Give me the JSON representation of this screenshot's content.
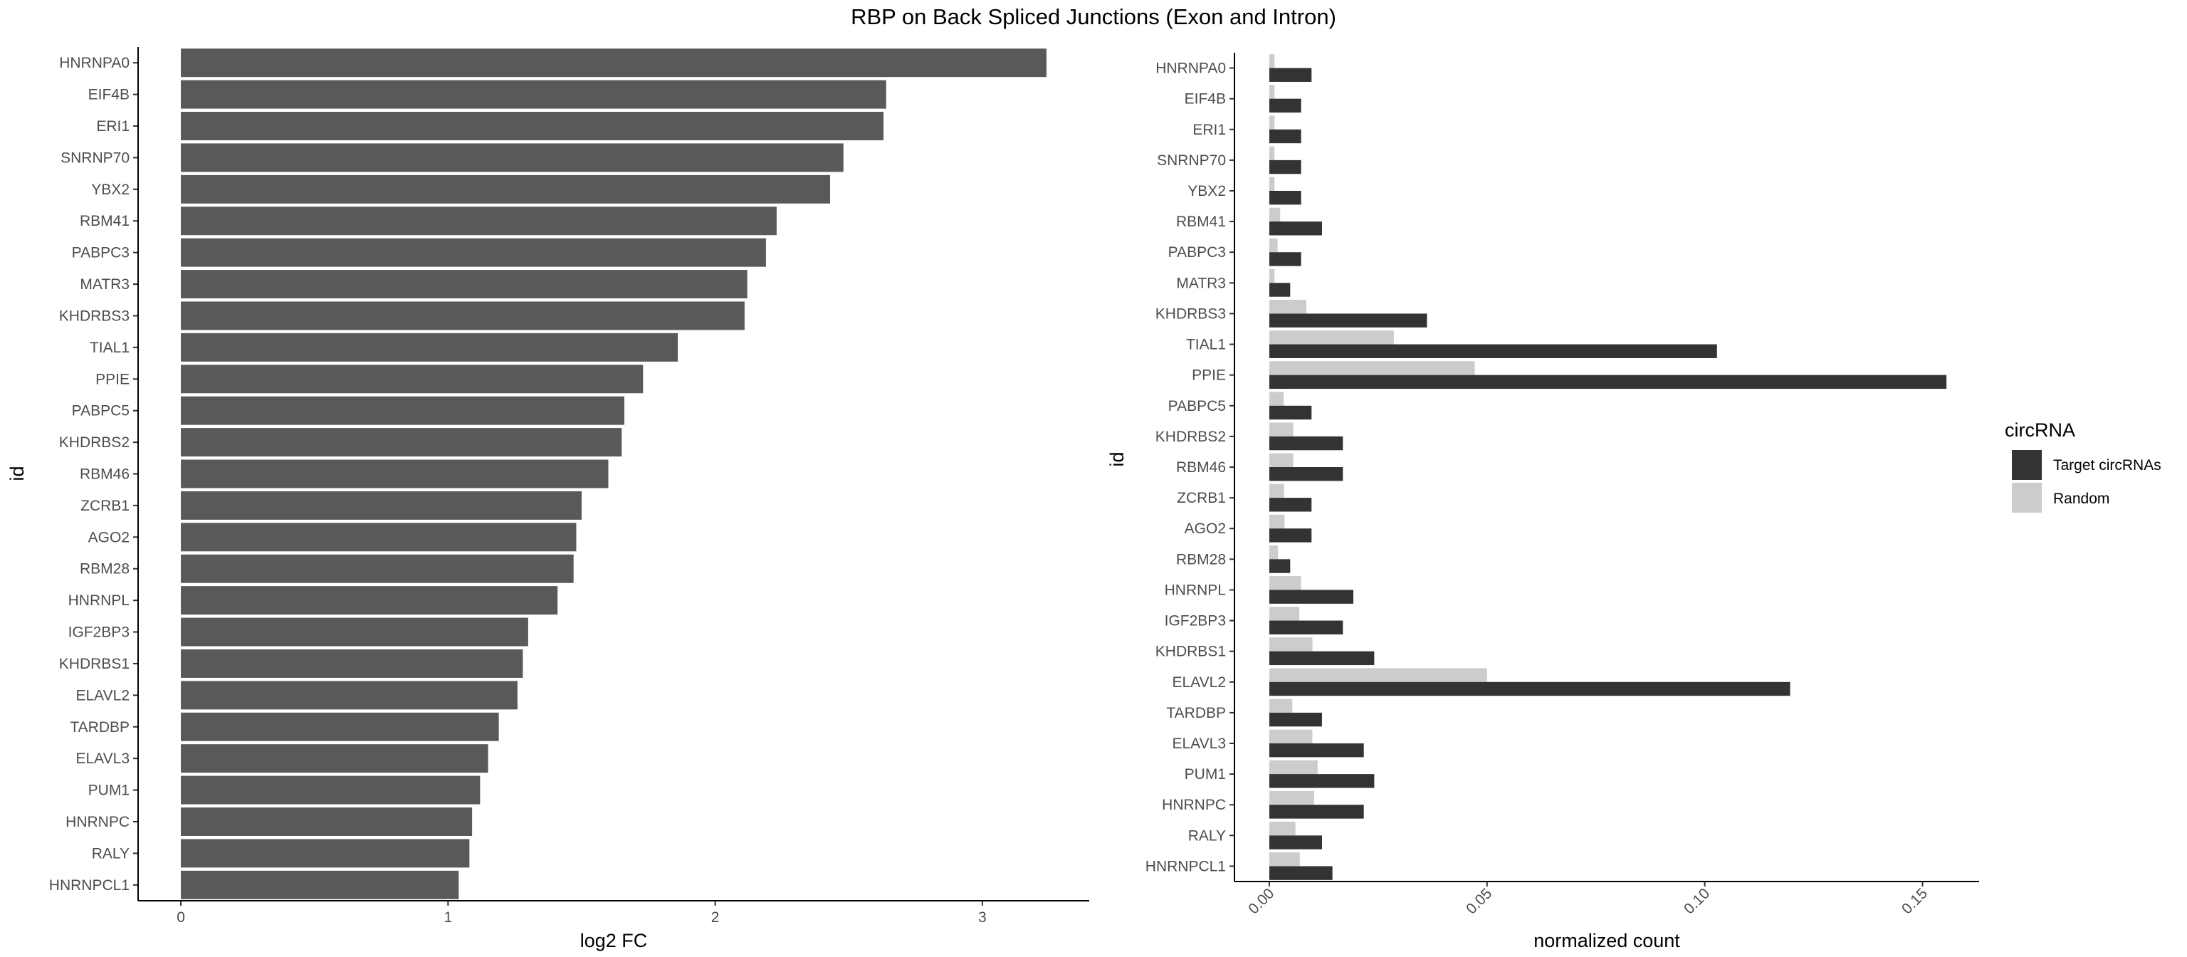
{
  "title": "RBP on Back Spliced Junctions (Exon and Intron)",
  "chart_data": [
    {
      "type": "bar",
      "orientation": "horizontal",
      "xlabel": "log2 FC",
      "ylabel": "id",
      "xlim": [
        -0.16,
        3.4
      ],
      "xticks": [
        0,
        1,
        2,
        3
      ],
      "grid": false,
      "color": "#595959",
      "categories": [
        "HNRNPA0",
        "EIF4B",
        "ERI1",
        "SNRNP70",
        "YBX2",
        "RBM41",
        "PABPC3",
        "MATR3",
        "KHDRBS3",
        "TIAL1",
        "PPIE",
        "PABPC5",
        "KHDRBS2",
        "RBM46",
        "ZCRB1",
        "AGO2",
        "RBM28",
        "HNRNPL",
        "IGF2BP3",
        "KHDRBS1",
        "ELAVL2",
        "TARDBP",
        "ELAVL3",
        "PUM1",
        "HNRNPC",
        "RALY",
        "HNRNPCL1"
      ],
      "values": [
        3.24,
        2.64,
        2.63,
        2.48,
        2.43,
        2.23,
        2.19,
        2.12,
        2.11,
        1.86,
        1.73,
        1.66,
        1.65,
        1.6,
        1.5,
        1.48,
        1.47,
        1.41,
        1.3,
        1.28,
        1.26,
        1.19,
        1.15,
        1.12,
        1.09,
        1.08,
        1.04
      ]
    },
    {
      "type": "bar",
      "orientation": "horizontal",
      "grouped": true,
      "xlabel": "normalized count",
      "ylabel": "id",
      "xlim": [
        -0.008,
        0.163
      ],
      "xticks": [
        0.0,
        0.05,
        0.1,
        0.15
      ],
      "xtick_labels": [
        "0.00",
        "0.05",
        "0.10",
        "0.15"
      ],
      "grid": false,
      "legend": {
        "title": "circRNA",
        "position": "right"
      },
      "categories": [
        "HNRNPA0",
        "EIF4B",
        "ERI1",
        "SNRNP70",
        "YBX2",
        "RBM41",
        "PABPC3",
        "MATR3",
        "KHDRBS3",
        "TIAL1",
        "PPIE",
        "PABPC5",
        "KHDRBS2",
        "RBM46",
        "ZCRB1",
        "AGO2",
        "RBM28",
        "HNRNPL",
        "IGF2BP3",
        "KHDRBS1",
        "ELAVL2",
        "TARDBP",
        "ELAVL3",
        "PUM1",
        "HNRNPC",
        "RALY",
        "HNRNPCL1"
      ],
      "series": [
        {
          "name": "Target circRNAs",
          "color": "#333333",
          "values": [
            0.0097,
            0.0073,
            0.0073,
            0.0073,
            0.0073,
            0.0121,
            0.0073,
            0.0048,
            0.0362,
            0.1028,
            0.1555,
            0.0097,
            0.0169,
            0.0169,
            0.0097,
            0.0097,
            0.0048,
            0.0193,
            0.0169,
            0.0241,
            0.1196,
            0.0121,
            0.0217,
            0.0241,
            0.0217,
            0.0121,
            0.0145
          ]
        },
        {
          "name": "Random",
          "color": "#cccccc",
          "values": [
            0.0012,
            0.0012,
            0.0012,
            0.0012,
            0.0012,
            0.0025,
            0.0019,
            0.0012,
            0.0085,
            0.0286,
            0.0472,
            0.0033,
            0.0055,
            0.0055,
            0.0034,
            0.0035,
            0.002,
            0.0073,
            0.0069,
            0.0099,
            0.05,
            0.0053,
            0.0099,
            0.0111,
            0.0103,
            0.006,
            0.007
          ]
        }
      ]
    }
  ]
}
